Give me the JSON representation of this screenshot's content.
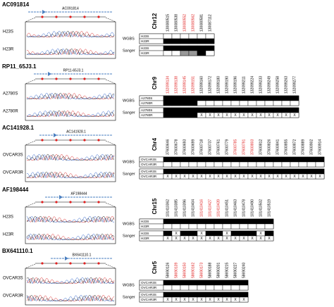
{
  "panels": [
    {
      "title": "AC091814",
      "gene": "AC091814",
      "chr": "Chr12",
      "samples": [
        "H23S",
        "H23R"
      ],
      "positions": [
        "130080515",
        "130080538",
        "130080552",
        "130080562",
        "130080581",
        "130087112"
      ],
      "position_colors": [
        "#000",
        "#000",
        "#e02020",
        "#e02020",
        "#000",
        "#000"
      ],
      "wgbs": {
        "label": "WGBS",
        "rows": [
          {
            "sample": "H23S",
            "fills": [
              "#fff",
              "#fff",
              "#fff",
              "#fff",
              "#fff",
              "#fff"
            ]
          },
          {
            "sample": "H23R",
            "fills": [
              "#000",
              "#000",
              "#000",
              "#000",
              "#000",
              "#000"
            ]
          }
        ]
      },
      "sanger": {
        "label": "Sanger",
        "rows": [
          {
            "sample": "H23S",
            "fills": [
              "#000",
              "#000",
              "#000",
              "#000",
              "#000",
              "#000"
            ],
            "marks": [
              null,
              null,
              null,
              null,
              null,
              null
            ]
          },
          {
            "sample": "H23R",
            "fills": [
              "#fff",
              "#fff",
              "#999",
              "#999",
              "#000",
              "#fff"
            ],
            "marks": [
              null,
              null,
              null,
              null,
              null,
              null
            ]
          }
        ]
      }
    },
    {
      "title": "RP11_65J3.1",
      "gene": "RP11-65J3.1",
      "chr": "Chr9",
      "samples": [
        "A2780S",
        "A2780R"
      ],
      "positions": [
        "132099134",
        "132099138",
        "132099145",
        "132099151",
        "132099160",
        "132099172",
        "132099180",
        "132099190",
        "132099196",
        "132099211",
        "132099224",
        "132099233",
        "132099249",
        "132099258",
        "132099263",
        "132099277"
      ],
      "position_colors": [
        "#e02020",
        "#e02020",
        "#e02020",
        "#e02020",
        "#000",
        "#000",
        "#000",
        "#000",
        "#000",
        "#000",
        "#000",
        "#000",
        "#000",
        "#000",
        "#000",
        "#000"
      ],
      "wgbs": {
        "label": "WGBS",
        "rows": [
          {
            "sample": "A2780S",
            "fills": [
              "#000",
              "#000",
              "#000",
              "#000",
              "#000",
              "#000",
              "#000",
              "#000",
              "#000",
              "#000",
              "#000",
              "#000",
              "#000",
              "#000",
              "#000",
              "#000"
            ]
          },
          {
            "sample": "A2780R",
            "fills": [
              "#000",
              "#000",
              "#000",
              "#000",
              "#fff",
              "#fff",
              "#fff",
              "#fff",
              "#fff",
              "#fff",
              "#fff",
              "#fff",
              "#fff",
              "#fff",
              "#fff",
              "#fff"
            ]
          }
        ]
      },
      "sanger": {
        "label": "Sanger",
        "rows": [
          {
            "sample": "A2780S",
            "fills": [
              "#000",
              "#000",
              "#000",
              "#000",
              "#000",
              "#000",
              "#000",
              "#000",
              "#000",
              "#000",
              "#000",
              "#000",
              "#000",
              "#000",
              "#000",
              "#000"
            ],
            "marks": [
              null,
              null,
              null,
              null,
              null,
              null,
              null,
              null,
              null,
              null,
              null,
              null,
              null,
              null,
              null,
              null
            ]
          },
          {
            "sample": "A2780R",
            "fills": [
              "#000",
              "#000",
              "#000",
              "#000",
              "#fff",
              "#fff",
              "#fff",
              "#fff",
              "#fff",
              "#fff",
              "#fff",
              "#fff",
              "#fff",
              "#fff",
              "#fff",
              "#fff"
            ],
            "marks": [
              null,
              null,
              null,
              null,
              "X",
              "X",
              "X",
              "X",
              "X",
              "X",
              "X",
              "X",
              "X",
              "X",
              "X",
              "X"
            ]
          }
        ]
      }
    },
    {
      "title": "AC141928.1",
      "gene": "AC141928.1",
      "chr": "Chr4",
      "samples": [
        "OVCAR3S",
        "OVCAR3R"
      ],
      "positions": [
        "37600646",
        "37600678",
        "37600693",
        "37600699",
        "37600718",
        "37600737",
        "37600761",
        "37600779",
        "37600785",
        "37600791",
        "37600803",
        "37600812",
        "37600826",
        "37600841",
        "37600855",
        "37600872",
        "37600889",
        "37600902",
        "37600914"
      ],
      "position_colors": [
        "#000",
        "#000",
        "#000",
        "#000",
        "#000",
        "#000",
        "#000",
        "#000",
        "#e02020",
        "#e02020",
        "#e02020",
        "#000",
        "#000",
        "#000",
        "#000",
        "#000",
        "#000",
        "#000",
        "#000"
      ],
      "wgbs": {
        "label": "WGBS",
        "rows": [
          {
            "sample": "OVCAR3S",
            "fills": [
              "#000",
              "#000",
              "#000",
              "#000",
              "#000",
              "#000",
              "#000",
              "#000",
              "#000",
              "#000",
              "#000",
              "#000",
              "#000",
              "#000",
              "#000",
              "#000",
              "#000",
              "#000",
              "#000"
            ]
          },
          {
            "sample": "OVCAR3R",
            "fills": [
              "#fff",
              "#fff",
              "#fff",
              "#fff",
              "#fff",
              "#fff",
              "#fff",
              "#fff",
              "#fff",
              "#fff",
              "#fff",
              "#fff",
              "#fff",
              "#fff",
              "#fff",
              "#fff",
              "#fff",
              "#fff",
              "#fff"
            ]
          }
        ]
      },
      "sanger": {
        "label": "Sanger",
        "rows": [
          {
            "sample": "OVCAR3S",
            "fills": [
              "#000",
              "#000",
              "#000",
              "#000",
              "#000",
              "#000",
              "#000",
              "#000",
              "#000",
              "#000",
              "#000",
              "#000",
              "#000",
              "#000",
              "#000",
              "#000",
              "#000",
              "#000",
              "#000"
            ],
            "marks": [
              null,
              null,
              null,
              null,
              null,
              null,
              null,
              null,
              null,
              null,
              null,
              null,
              null,
              null,
              null,
              null,
              null,
              null,
              null
            ]
          },
          {
            "sample": "OVCAR3R",
            "fills": [
              "#fff",
              "#fff",
              "#fff",
              "#fff",
              "#fff",
              "#fff",
              "#fff",
              "#fff",
              "#fff",
              "#fff",
              "#fff",
              "#fff",
              "#fff",
              "#fff",
              "#fff",
              "#fff",
              "#fff",
              "#fff",
              "#fff"
            ],
            "marks": [
              "X",
              "X",
              "X",
              "X",
              "X",
              "X",
              "X",
              "X",
              "X",
              "X",
              "X",
              "X",
              "X",
              "X",
              "X",
              "X",
              "X",
              "X",
              "X"
            ]
          }
        ]
      }
    },
    {
      "title": "AF198444",
      "gene": "AF198444",
      "chr": "Chr15",
      "samples": [
        "H23S",
        "H23R"
      ],
      "positions": [
        "101410362",
        "101410385",
        "101410396",
        "101410404",
        "101410416",
        "101410427",
        "101410439",
        "101410451",
        "101410463",
        "101410478",
        "101410490",
        "101410502",
        "101410519"
      ],
      "position_colors": [
        "#000",
        "#000",
        "#000",
        "#000",
        "#e02020",
        "#e02020",
        "#e02020",
        "#000",
        "#000",
        "#000",
        "#000",
        "#000",
        "#000"
      ],
      "wgbs": {
        "label": "WGBS",
        "rows": [
          {
            "sample": "H23S",
            "fills": [
              "#000",
              "#000",
              "#000",
              "#000",
              "#000",
              "#000",
              "#000",
              "#000",
              "#000",
              "#000",
              "#000",
              "#000",
              "#000"
            ]
          },
          {
            "sample": "H23R",
            "fills": [
              "#fff",
              "#fff",
              "#fff",
              "#fff",
              "#fff",
              "#fff",
              "#fff",
              "#fff",
              "#fff",
              "#fff",
              "#fff",
              "#fff",
              "#fff"
            ]
          }
        ]
      },
      "sanger": {
        "label": "Sanger",
        "rows": [
          {
            "sample": "H23S",
            "fills": [
              "#000",
              "#fff",
              "#000",
              "#000",
              "#fff",
              "#000",
              "#000",
              "#fff",
              "#000",
              "#000",
              "#000",
              "#fff",
              "#000"
            ],
            "marks": [
              null,
              "X",
              null,
              null,
              "X",
              null,
              null,
              "X",
              null,
              null,
              null,
              "X",
              null
            ]
          },
          {
            "sample": "H23R",
            "fills": [
              "#fff",
              "#fff",
              "#fff",
              "#fff",
              "#fff",
              "#fff",
              "#fff",
              "#fff",
              "#fff",
              "#fff",
              "#fff",
              "#fff",
              "#fff"
            ],
            "marks": [
              "X",
              "X",
              "X",
              "X",
              "X",
              "X",
              "X",
              "X",
              "X",
              "X",
              "X",
              "X",
              "X"
            ]
          }
        ]
      }
    },
    {
      "title": "BX641110.1",
      "gene": "BX641110.1",
      "chr": "Chr5",
      "samples": [
        "OVCAR3S",
        "OVCAR3R"
      ],
      "positions": [
        "58690126",
        "58690139",
        "58690150",
        "58690162",
        "58690173",
        "58690188",
        "58690201",
        "58690215",
        "58690227",
        "58690240"
      ],
      "position_colors": [
        "#000",
        "#e02020",
        "#e02020",
        "#e02020",
        "#e02020",
        "#000",
        "#000",
        "#000",
        "#000",
        "#000"
      ],
      "wgbs": {
        "label": "WGBS",
        "rows": [
          {
            "sample": "OVCAR3S",
            "fills": [
              "#000",
              "#000",
              "#000",
              "#000",
              "#000",
              "#000",
              "#000",
              "#000",
              "#000",
              "#000"
            ]
          },
          {
            "sample": "OVCAR3R",
            "fills": [
              "#fff",
              "#fff",
              "#fff",
              "#fff",
              "#fff",
              "#fff",
              "#fff",
              "#fff",
              "#fff",
              "#fff"
            ]
          }
        ]
      },
      "sanger": {
        "label": "Sanger",
        "rows": [
          {
            "sample": "OVCAR3S",
            "fills": [
              "#000",
              "#000",
              "#000",
              "#000",
              "#000",
              "#000",
              "#000",
              "#000",
              "#000",
              "#000"
            ],
            "marks": [
              null,
              null,
              null,
              null,
              null,
              null,
              null,
              null,
              null,
              null
            ]
          },
          {
            "sample": "OVCAR3R",
            "fills": [
              "#fff",
              "#fff",
              "#fff",
              "#fff",
              "#fff",
              "#fff",
              "#fff",
              "#fff",
              "#fff",
              "#fff"
            ],
            "marks": [
              "X",
              "X",
              "X",
              "X",
              "X",
              "X",
              "X",
              "X",
              "X",
              "X"
            ]
          }
        ]
      }
    }
  ]
}
